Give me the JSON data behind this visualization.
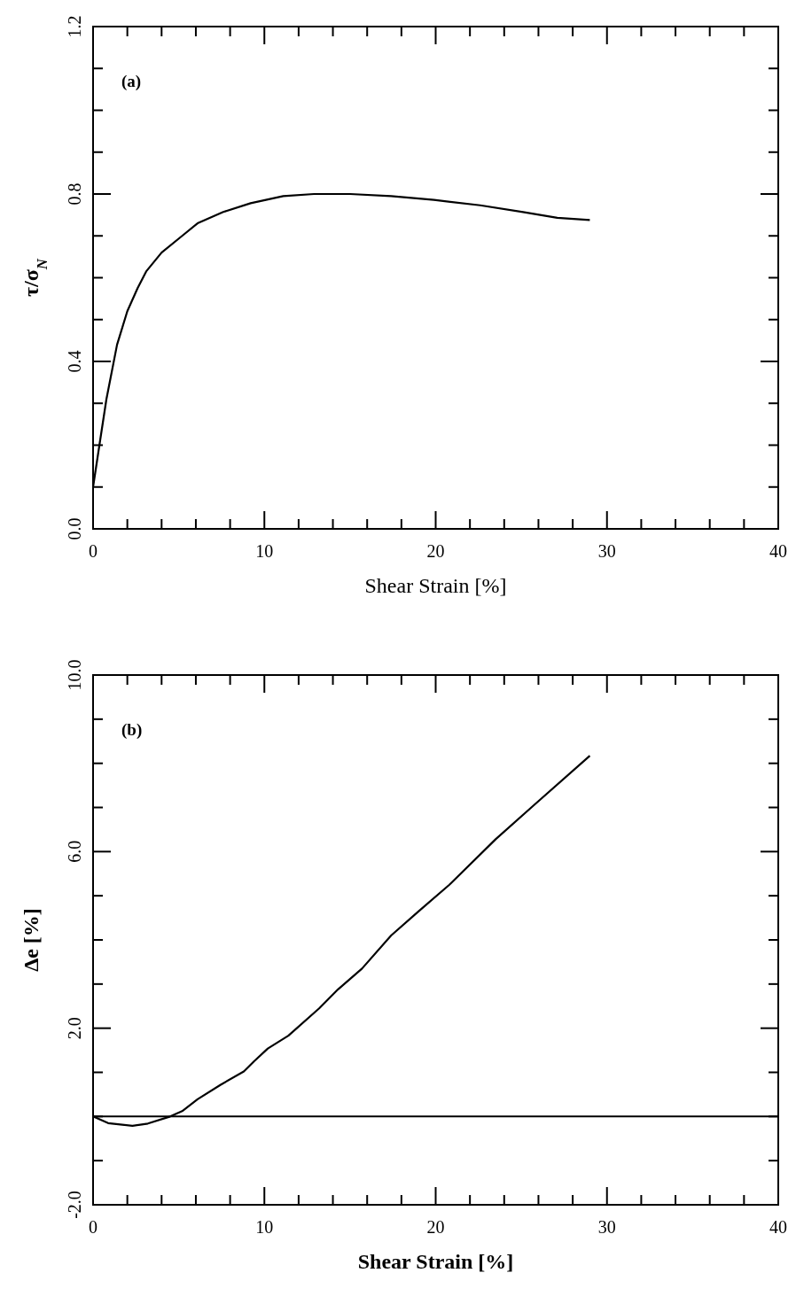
{
  "chart_data": [
    {
      "type": "line",
      "xlabel": "Shear Strain [%]",
      "ylabel": "τ/σ$_{N}$",
      "annotations": [
        "(a)"
      ],
      "xlim": [
        0,
        40
      ],
      "ylim": [
        0,
        1.2
      ],
      "xticks": [
        0,
        {
          "value": 2,
          "label": null
        },
        {
          "value": 4,
          "label": null
        },
        {
          "value": 6,
          "label": null
        },
        {
          "value": 8,
          "label": null
        },
        10,
        {
          "value": 12,
          "label": null
        },
        {
          "value": 14,
          "label": null
        },
        {
          "value": 16,
          "label": null
        },
        {
          "value": 18,
          "label": null
        },
        20,
        {
          "value": 22,
          "label": null
        },
        {
          "value": 24,
          "label": null
        },
        {
          "value": 26,
          "label": null
        },
        {
          "value": 28,
          "label": null
        },
        30,
        {
          "value": 32,
          "label": null
        },
        {
          "value": 34,
          "label": null
        },
        {
          "value": 36,
          "label": null
        },
        {
          "value": 38,
          "label": null
        },
        40
      ],
      "yticks": [
        {
          "value": 0,
          "label": "0.0"
        },
        {
          "value": 0.1,
          "label": null
        },
        {
          "value": 0.2,
          "label": null
        },
        {
          "value": 0.3,
          "label": null
        },
        0.4,
        {
          "value": 0.5,
          "label": null
        },
        {
          "value": 0.6,
          "label": null
        },
        {
          "value": 0.7,
          "label": null
        },
        0.8,
        {
          "value": 0.9,
          "label": null
        },
        {
          "value": 1.0,
          "label": null
        },
        {
          "value": 1.1,
          "label": null
        },
        1.2
      ],
      "grid": false,
      "line_style": "solid",
      "series": [
        {
          "color": "#000000",
          "x": [
            0,
            0.37,
            0.78,
            1.4,
            2.0,
            2.6,
            3.1,
            4.0,
            5.2,
            6.1,
            7.6,
            9.2,
            11.1,
            12.9,
            15.0,
            17.4,
            19.9,
            22.6,
            25.1,
            27.1,
            29.0
          ],
          "values": [
            0.1,
            0.2,
            0.31,
            0.44,
            0.52,
            0.575,
            0.615,
            0.66,
            0.7,
            0.73,
            0.757,
            0.778,
            0.795,
            0.8,
            0.8,
            0.795,
            0.786,
            0.773,
            0.757,
            0.743,
            0.738
          ]
        }
      ]
    },
    {
      "type": "line",
      "xlabel": "Shear Strain [%]",
      "ylabel": "Δe [%]",
      "annotations": [
        "(b)"
      ],
      "xlim": [
        0,
        40
      ],
      "ylim": [
        -2,
        10
      ],
      "xticks": [
        0,
        {
          "value": 2,
          "label": null
        },
        {
          "value": 4,
          "label": null
        },
        {
          "value": 6,
          "label": null
        },
        {
          "value": 8,
          "label": null
        },
        10,
        {
          "value": 12,
          "label": null
        },
        {
          "value": 14,
          "label": null
        },
        {
          "value": 16,
          "label": null
        },
        {
          "value": 18,
          "label": null
        },
        20,
        {
          "value": 22,
          "label": null
        },
        {
          "value": 24,
          "label": null
        },
        {
          "value": 26,
          "label": null
        },
        {
          "value": 28,
          "label": null
        },
        30,
        {
          "value": 32,
          "label": null
        },
        {
          "value": 34,
          "label": null
        },
        {
          "value": 36,
          "label": null
        },
        {
          "value": 38,
          "label": null
        },
        40
      ],
      "yticks": [
        {
          "value": -2,
          "label": "-2.0"
        },
        {
          "value": -1,
          "label": null
        },
        {
          "value": 0,
          "label": null
        },
        {
          "value": 1,
          "label": null
        },
        {
          "value": 2,
          "label": "2.0"
        },
        {
          "value": 3,
          "label": null
        },
        {
          "value": 4,
          "label": null
        },
        {
          "value": 5,
          "label": null
        },
        {
          "value": 6,
          "label": "6.0"
        },
        {
          "value": 7,
          "label": null
        },
        {
          "value": 8,
          "label": null
        },
        {
          "value": 9,
          "label": null
        },
        {
          "value": 10,
          "label": "10.0"
        }
      ],
      "grid": false,
      "line_style": "solid",
      "ref_lines": [
        {
          "axis": "y",
          "value": 0,
          "color": "#000000"
        }
      ],
      "series": [
        {
          "color": "#000000",
          "x": [
            0,
            0.88,
            2.3,
            3.2,
            4.5,
            5.2,
            6.1,
            7.45,
            8.8,
            9.4,
            10.2,
            11.4,
            13.2,
            14.3,
            15.7,
            17.4,
            18.95,
            20.8,
            23.5,
            25.7,
            29.0
          ],
          "values": [
            0,
            -0.15,
            -0.21,
            -0.16,
            0,
            0.12,
            0.39,
            0.72,
            1.02,
            1.25,
            1.54,
            1.83,
            2.45,
            2.88,
            3.35,
            4.1,
            4.63,
            5.25,
            6.28,
            7.04,
            8.17
          ]
        }
      ]
    }
  ]
}
